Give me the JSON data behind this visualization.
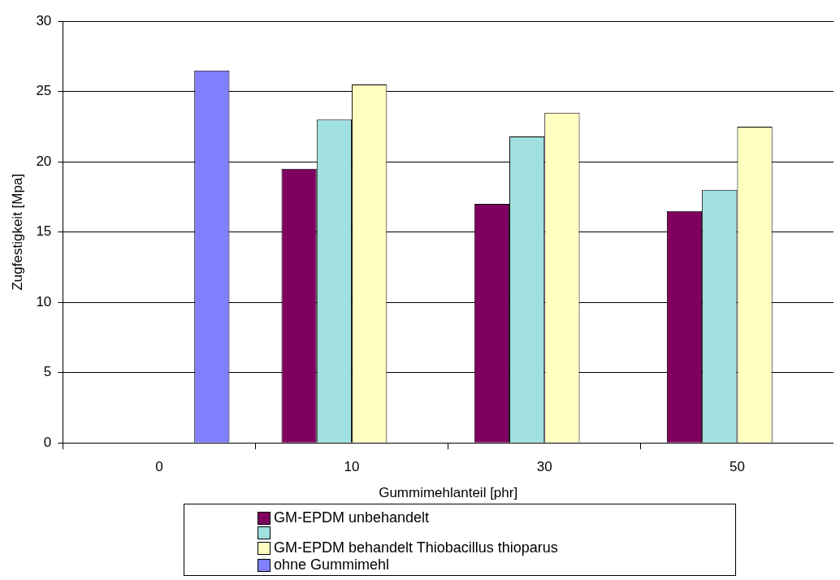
{
  "chart_data": {
    "type": "bar",
    "xlabel": "Gummimehlanteil [phr]",
    "ylabel": "Zugfestigkeit [Mpa]",
    "categories": [
      "0",
      "10",
      "30",
      "50"
    ],
    "series": [
      {
        "name": "GM-EPDM unbehandelt",
        "color": "#800060",
        "values": [
          null,
          19.5,
          17,
          16.5
        ]
      },
      {
        "color": "#a0e0e0",
        "values": [
          null,
          23,
          21.8,
          18
        ]
      },
      {
        "name": "GM-EPDM behandelt Thiobacillus thioparus",
        "color": "#ffffc0",
        "values": [
          null,
          25.5,
          23.5,
          22.5
        ]
      },
      {
        "name": "ohne Gummimehl",
        "color": "#8080ff",
        "values": [
          26.5,
          null,
          null,
          null
        ]
      }
    ],
    "ylim": [
      0,
      30
    ],
    "yticks": [
      0,
      5,
      10,
      15,
      20,
      25,
      30
    ],
    "grid": "y",
    "legend": "bottom"
  }
}
